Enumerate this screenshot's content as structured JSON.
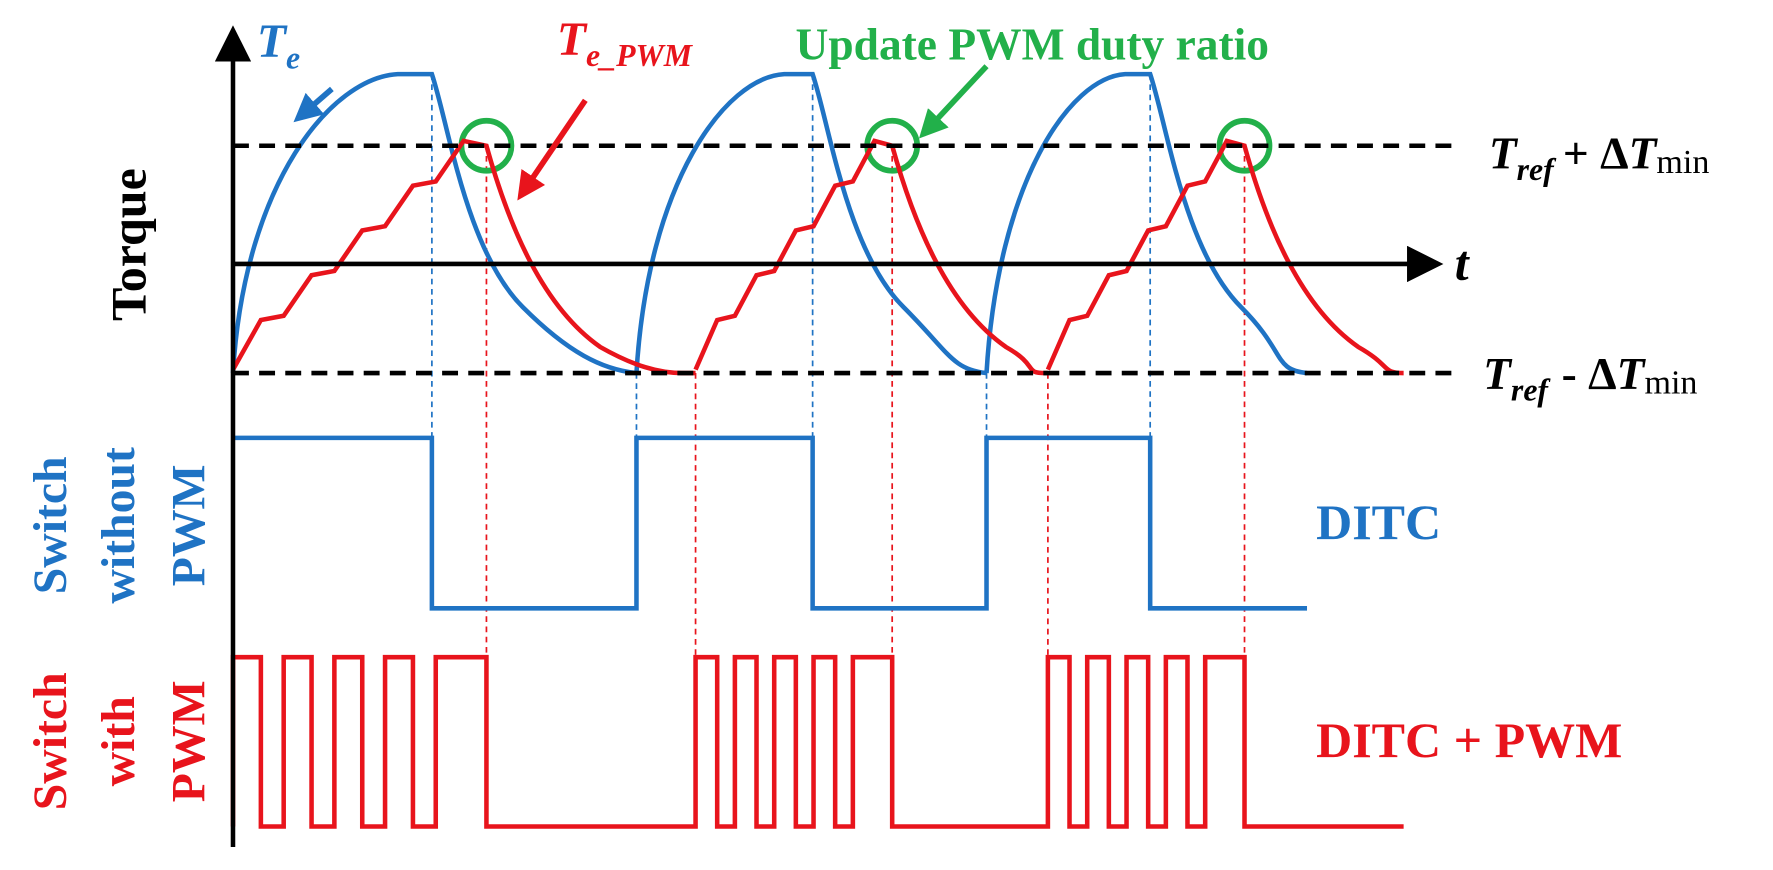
{
  "axes": {
    "y_label": "Torque",
    "x_label": "t"
  },
  "curves": {
    "te": {
      "symbol": "T",
      "subscript": "e"
    },
    "te_pwm": {
      "symbol": "T",
      "subscript": "e_PWM"
    }
  },
  "annotation": "Update PWM duty ratio",
  "limits": {
    "upper": {
      "symbol": "T",
      "subscript": "ref",
      "operator": "+ Δ",
      "symbol2": "T",
      "subscript2": "min"
    },
    "lower": {
      "symbol": "T",
      "subscript": "ref",
      "operator": "- Δ",
      "symbol2": "T",
      "subscript2": "min"
    }
  },
  "rows": {
    "without_pwm": {
      "label": [
        "Switch",
        "without",
        "PWM"
      ],
      "name": "DITC"
    },
    "with_pwm": {
      "label": [
        "Switch",
        "with",
        "PWM"
      ],
      "name": "DITC + PWM"
    }
  }
}
